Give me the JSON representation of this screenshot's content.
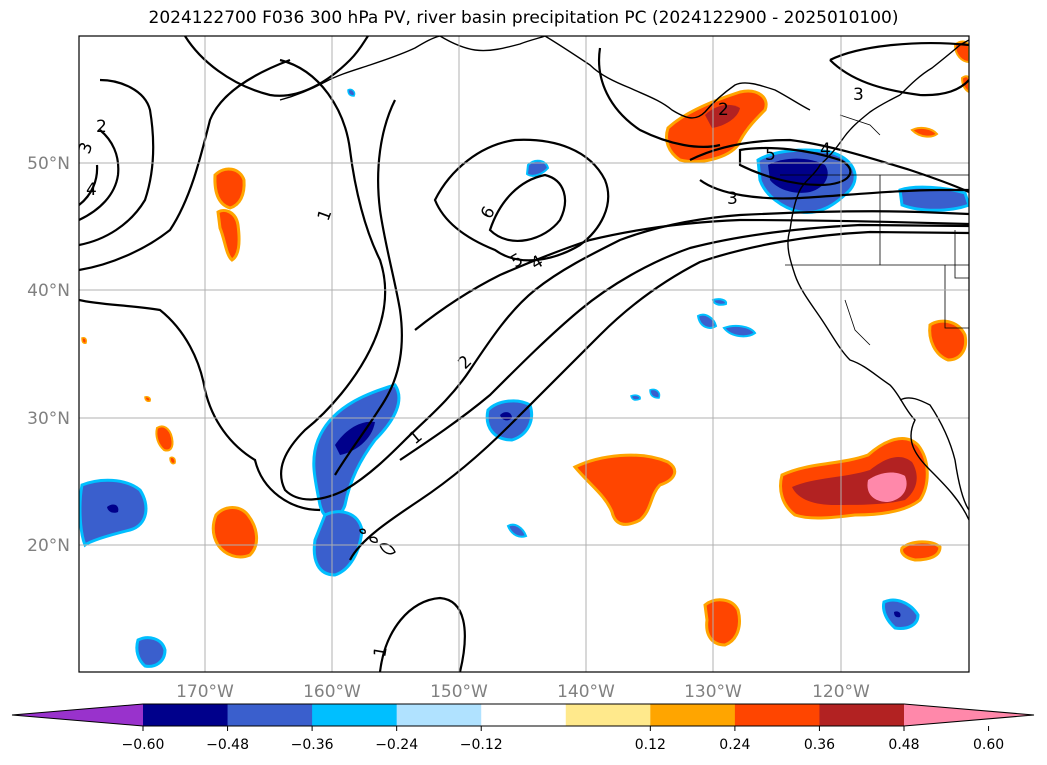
{
  "title": "2024122700 F036 300 hPa PV, river basin precipitation PC (2024122900 - 2025010100)",
  "map": {
    "lon_labels": [
      "170°W",
      "160°W",
      "150°W",
      "140°W",
      "130°W",
      "120°W"
    ],
    "lat_labels": [
      "50°N",
      "40°N",
      "30°N",
      "20°N"
    ],
    "grid": true
  },
  "contour_labels": [
    "1",
    "1",
    "1",
    "2",
    "2",
    "3",
    "3",
    "4",
    "4",
    "4",
    "5",
    "5",
    "6",
    "2",
    "3"
  ],
  "colorbar": {
    "ticks": [
      "−0.60",
      "−0.48",
      "−0.36",
      "−0.24",
      "−0.12",
      "0.12",
      "0.24",
      "0.36",
      "0.48",
      "0.60"
    ],
    "colors": [
      "#9932cc",
      "#00008b",
      "#3a5fcd",
      "#00bfff",
      "#b0e2ff",
      "#ffffff",
      "#ffe98c",
      "#ffa500",
      "#ff4500",
      "#b22222",
      "#ff88aa"
    ],
    "extend": "both"
  }
}
